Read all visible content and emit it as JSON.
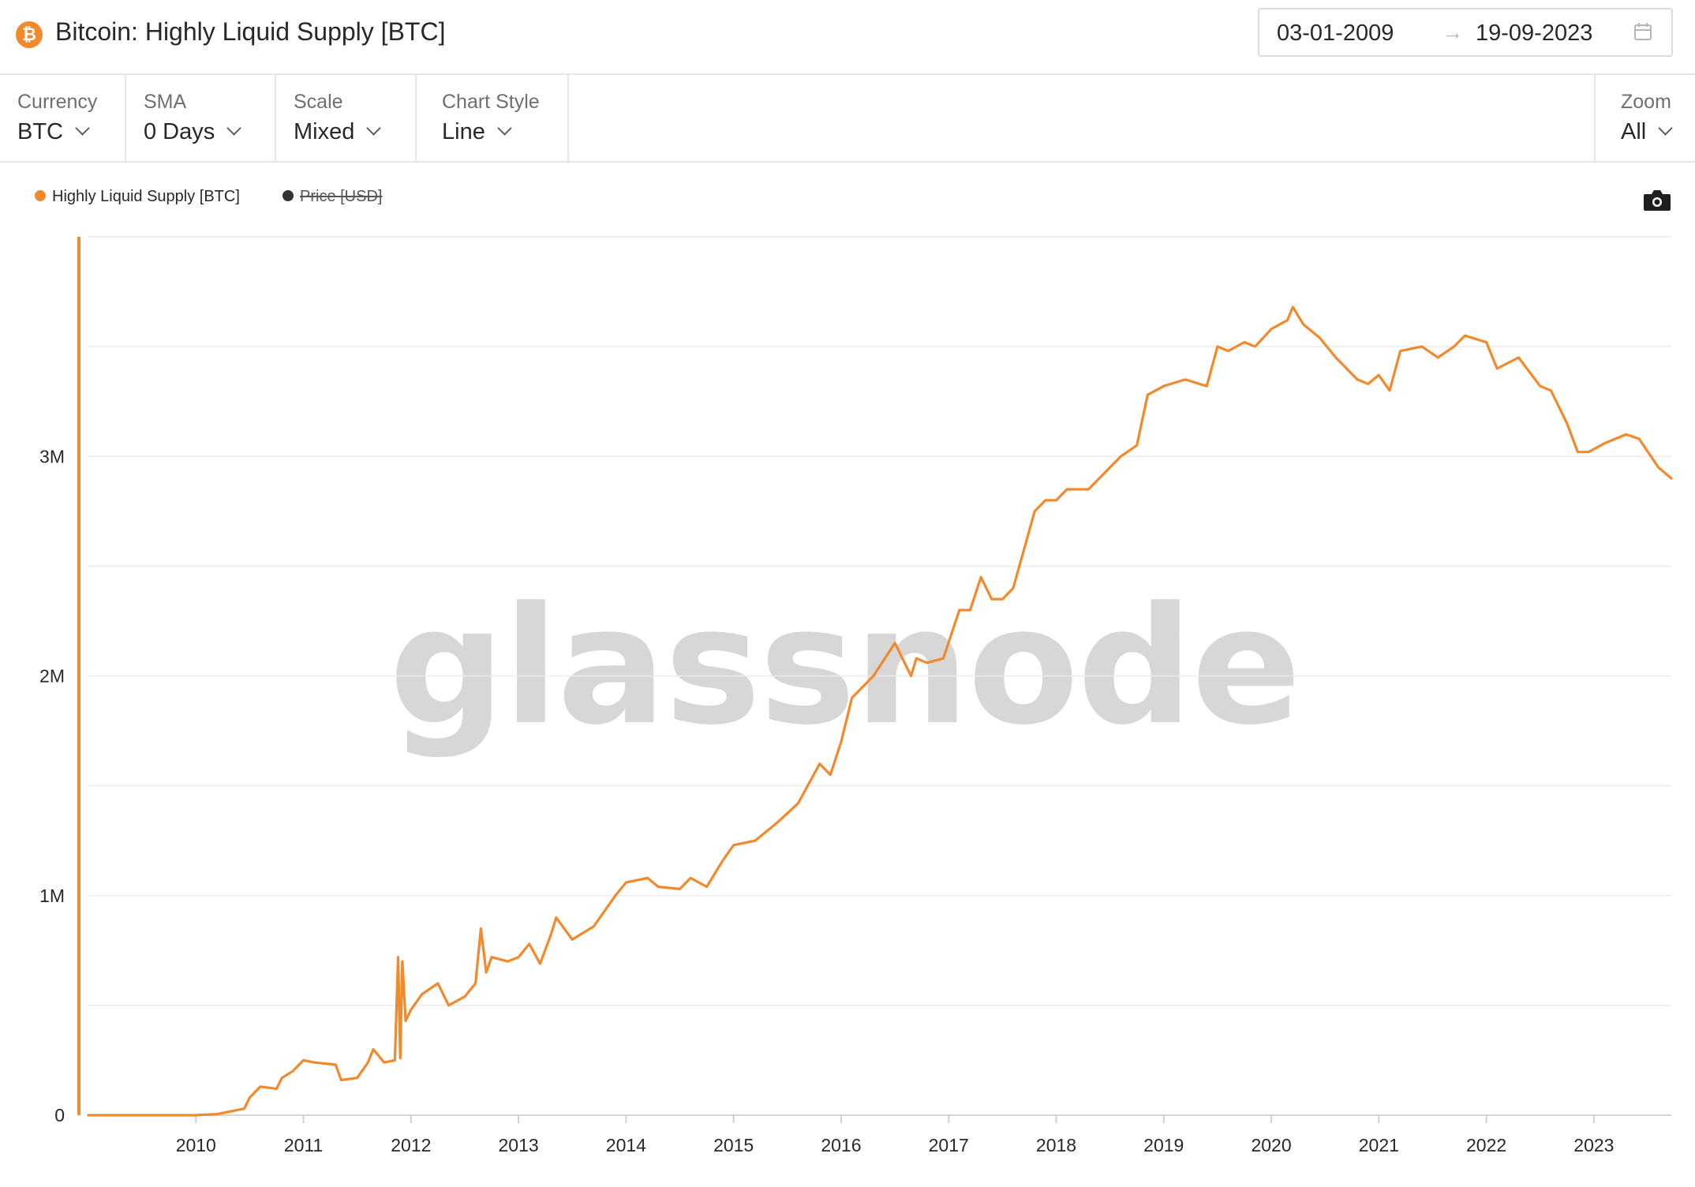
{
  "header": {
    "title": "Bitcoin: Highly Liquid Supply [BTC]",
    "logo_glyph": "₿",
    "date_start": "03-01-2009",
    "date_arrow": "→",
    "date_end": "19-09-2023"
  },
  "toolbar": {
    "currency": {
      "label": "Currency",
      "value": "BTC"
    },
    "sma": {
      "label": "SMA",
      "value": "0 Days"
    },
    "scale": {
      "label": "Scale",
      "value": "Mixed"
    },
    "chart_style": {
      "label": "Chart Style",
      "value": "Line"
    },
    "zoom": {
      "label": "Zoom",
      "value": "All"
    }
  },
  "legend": {
    "series1": "Highly Liquid Supply [BTC]",
    "series2": "Price [USD]"
  },
  "colors": {
    "accent": "#f08a2c",
    "line": "#f08a2c",
    "grid": "#ececec",
    "price_legend": "#333333"
  },
  "watermark": "glassnode",
  "chart_data": {
    "type": "line",
    "title": "Bitcoin: Highly Liquid Supply [BTC]",
    "xlabel": "",
    "ylabel": "",
    "x_range": [
      2009.0,
      2023.72
    ],
    "ylim": [
      0,
      4000000
    ],
    "y_ticks": [
      {
        "value": 0,
        "label": "0"
      },
      {
        "value": 1000000,
        "label": "1M"
      },
      {
        "value": 2000000,
        "label": "2M"
      },
      {
        "value": 3000000,
        "label": "3M"
      }
    ],
    "y_gridlines": [
      500000,
      1000000,
      1500000,
      2000000,
      2500000,
      3000000,
      3500000,
      4000000
    ],
    "x_ticks": [
      {
        "value": 2010,
        "label": "2010"
      },
      {
        "value": 2011,
        "label": "2011"
      },
      {
        "value": 2012,
        "label": "2012"
      },
      {
        "value": 2013,
        "label": "2013"
      },
      {
        "value": 2014,
        "label": "2014"
      },
      {
        "value": 2015,
        "label": "2015"
      },
      {
        "value": 2016,
        "label": "2016"
      },
      {
        "value": 2017,
        "label": "2017"
      },
      {
        "value": 2018,
        "label": "2018"
      },
      {
        "value": 2019,
        "label": "2019"
      },
      {
        "value": 2020,
        "label": "2020"
      },
      {
        "value": 2021,
        "label": "2021"
      },
      {
        "value": 2022,
        "label": "2022"
      },
      {
        "value": 2023,
        "label": "2023"
      }
    ],
    "grid": true,
    "legend_position": "top-left",
    "series": [
      {
        "name": "Highly Liquid Supply [BTC]",
        "x": [
          2009.0,
          2009.5,
          2010.0,
          2010.2,
          2010.35,
          2010.45,
          2010.5,
          2010.6,
          2010.75,
          2010.8,
          2010.9,
          2011.0,
          2011.1,
          2011.3,
          2011.35,
          2011.5,
          2011.6,
          2011.65,
          2011.75,
          2011.85,
          2011.88,
          2011.9,
          2011.92,
          2011.95,
          2012.0,
          2012.1,
          2012.25,
          2012.35,
          2012.5,
          2012.6,
          2012.65,
          2012.7,
          2012.75,
          2012.9,
          2013.0,
          2013.1,
          2013.2,
          2013.3,
          2013.35,
          2013.5,
          2013.7,
          2013.9,
          2014.0,
          2014.2,
          2014.3,
          2014.5,
          2014.6,
          2014.75,
          2014.9,
          2015.0,
          2015.2,
          2015.4,
          2015.6,
          2015.8,
          2015.9,
          2016.0,
          2016.1,
          2016.2,
          2016.3,
          2016.5,
          2016.6,
          2016.65,
          2016.7,
          2016.8,
          2016.95,
          2017.1,
          2017.2,
          2017.3,
          2017.4,
          2017.5,
          2017.6,
          2017.8,
          2017.9,
          2018.0,
          2018.1,
          2018.3,
          2018.6,
          2018.75,
          2018.85,
          2019.0,
          2019.2,
          2019.4,
          2019.5,
          2019.6,
          2019.75,
          2019.85,
          2020.0,
          2020.15,
          2020.2,
          2020.3,
          2020.45,
          2020.6,
          2020.8,
          2020.9,
          2021.0,
          2021.1,
          2021.2,
          2021.4,
          2021.55,
          2021.7,
          2021.8,
          2022.0,
          2022.1,
          2022.3,
          2022.5,
          2022.6,
          2022.75,
          2022.85,
          2022.95,
          2023.1,
          2023.3,
          2023.42,
          2023.6,
          2023.72
        ],
        "values": [
          0,
          0,
          0,
          5000,
          20000,
          30000,
          80000,
          130000,
          120000,
          170000,
          200000,
          250000,
          240000,
          230000,
          160000,
          170000,
          240000,
          300000,
          240000,
          250000,
          720000,
          260000,
          700000,
          430000,
          480000,
          550000,
          600000,
          500000,
          540000,
          600000,
          850000,
          650000,
          720000,
          700000,
          720000,
          780000,
          690000,
          820000,
          900000,
          800000,
          860000,
          1000000,
          1060000,
          1080000,
          1040000,
          1030000,
          1080000,
          1040000,
          1160000,
          1230000,
          1250000,
          1330000,
          1420000,
          1600000,
          1550000,
          1700000,
          1900000,
          1950000,
          2000000,
          2150000,
          2050000,
          2000000,
          2080000,
          2060000,
          2080000,
          2300000,
          2300000,
          2450000,
          2350000,
          2350000,
          2400000,
          2750000,
          2800000,
          2800000,
          2850000,
          2850000,
          3000000,
          3050000,
          3280000,
          3320000,
          3350000,
          3320000,
          3500000,
          3480000,
          3520000,
          3500000,
          3580000,
          3620000,
          3680000,
          3600000,
          3540000,
          3450000,
          3350000,
          3330000,
          3370000,
          3300000,
          3480000,
          3500000,
          3450000,
          3500000,
          3550000,
          3520000,
          3400000,
          3450000,
          3320000,
          3300000,
          3150000,
          3020000,
          3020000,
          3060000,
          3100000,
          3080000,
          2950000,
          2900000
        ]
      }
    ]
  }
}
